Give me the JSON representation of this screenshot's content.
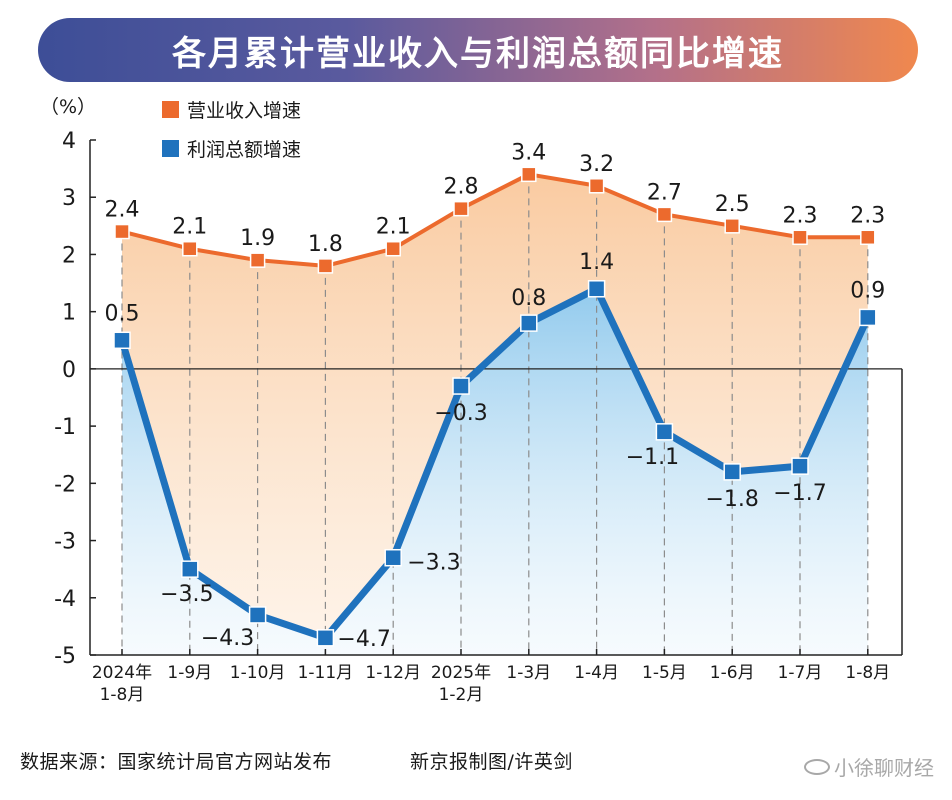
{
  "title": "各月累计营业收入与利润总额同比增速",
  "colors": {
    "revenue": "#ec6a2d",
    "profit": "#1f72bd",
    "revenue_fill_top": "#f9c89c",
    "profit_fill_top": "#7fc1ea",
    "grid": "#8c8c8c",
    "axis": "#222222"
  },
  "chart_data": {
    "type": "line",
    "unit_label": "（%）",
    "categories": [
      "2024年\n1-8月",
      "1-9月",
      "1-10月",
      "1-11月",
      "1-12月",
      "2025年\n1-2月",
      "1-3月",
      "1-4月",
      "1-5月",
      "1-6月",
      "1-7月",
      "1-8月"
    ],
    "ylim": [
      -5,
      4
    ],
    "yticks": [
      4,
      3,
      2,
      1,
      0,
      -1,
      -2,
      -3,
      -4,
      -5
    ],
    "ytick_labels": [
      "4",
      "3",
      "2",
      "1",
      "0",
      "-1",
      "-2",
      "-3",
      "-4",
      "-5"
    ],
    "legend_position": "top-left",
    "grid": "vertical dashed",
    "series": [
      {
        "name": "营业收入增速",
        "values": [
          2.4,
          2.1,
          1.9,
          1.8,
          2.1,
          2.8,
          3.4,
          3.2,
          2.7,
          2.5,
          2.3,
          2.3
        ],
        "labels": [
          "2.4",
          "2.1",
          "1.9",
          "1.8",
          "2.1",
          "2.8",
          "3.4",
          "3.2",
          "2.7",
          "2.5",
          "2.3",
          "2.3"
        ]
      },
      {
        "name": "利润总额增速",
        "values": [
          0.5,
          -3.5,
          -4.3,
          -4.7,
          -3.3,
          -0.3,
          0.8,
          1.4,
          -1.1,
          -1.8,
          -1.7,
          0.9
        ],
        "labels": [
          "0.5",
          "−3.5",
          "−4.3",
          "−4.7",
          "−3.3",
          "−0.3",
          "0.8",
          "1.4",
          "−1.1",
          "−1.8",
          "−1.7",
          "0.9"
        ]
      }
    ]
  },
  "footer": {
    "source": "数据来源：国家统计局官方网站发布",
    "credit": "新京报制图/许英剑"
  },
  "watermark": "小徐聊财经"
}
